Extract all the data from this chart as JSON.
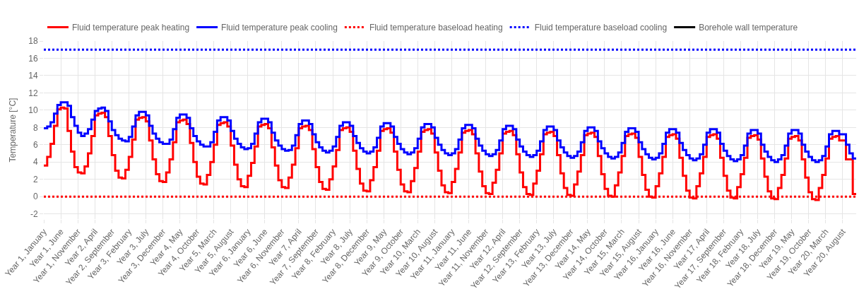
{
  "chart_data": {
    "type": "step",
    "ylabel": "Temperature [°C]",
    "categories": [
      "Year 1, January",
      null,
      null,
      null,
      null,
      "Year 1, June",
      null,
      null,
      null,
      null,
      "Year 1, November",
      null,
      null,
      null,
      null,
      "Year 2, April",
      null,
      null,
      null,
      null,
      "Year 2, September",
      null,
      null,
      null,
      null,
      "Year 3, February",
      null,
      null,
      null,
      null,
      "Year 3, July",
      null,
      null,
      null,
      null,
      "Year 3, December",
      null,
      null,
      null,
      null,
      "Year 4, May",
      null,
      null,
      null,
      null,
      "Year 4, October",
      null,
      null,
      null,
      null,
      "Year 5, March",
      null,
      null,
      null,
      null,
      "Year 5, August",
      null,
      null,
      null,
      null,
      "Year 6, January",
      null,
      null,
      null,
      null,
      "Year 6, June",
      null,
      null,
      null,
      null,
      "Year 6, November",
      null,
      null,
      null,
      null,
      "Year 7, April",
      null,
      null,
      null,
      null,
      "Year 7, September",
      null,
      null,
      null,
      null,
      "Year 8, February",
      null,
      null,
      null,
      null,
      "Year 8, July",
      null,
      null,
      null,
      null,
      "Year 8, December",
      null,
      null,
      null,
      null,
      "Year 9, May",
      null,
      null,
      null,
      null,
      "Year 9, October",
      null,
      null,
      null,
      null,
      "Year 10, March",
      null,
      null,
      null,
      null,
      "Year 10, August",
      null,
      null,
      null,
      null,
      "Year 11, January",
      null,
      null,
      null,
      null,
      "Year 11, June",
      null,
      null,
      null,
      null,
      "Year 11, November",
      null,
      null,
      null,
      null,
      "Year 12, April",
      null,
      null,
      null,
      null,
      "Year 12, September",
      null,
      null,
      null,
      null,
      "Year 13, February",
      null,
      null,
      null,
      null,
      "Year 13, July",
      null,
      null,
      null,
      null,
      "Year 13, December",
      null,
      null,
      null,
      null,
      "Year 14, May",
      null,
      null,
      null,
      null,
      "Year 14, October",
      null,
      null,
      null,
      null,
      "Year 15, March",
      null,
      null,
      null,
      null,
      "Year 15, August",
      null,
      null,
      null,
      null,
      "Year 16, January",
      null,
      null,
      null,
      null,
      "Year 16, June",
      null,
      null,
      null,
      null,
      "Year 16, November",
      null,
      null,
      null,
      null,
      "Year 17, April",
      null,
      null,
      null,
      null,
      "Year 17, September",
      null,
      null,
      null,
      null,
      "Year 18, February",
      null,
      null,
      null,
      null,
      "Year 18, July",
      null,
      null,
      null,
      null,
      "Year 18, December",
      null,
      null,
      null,
      null,
      "Year 19, May",
      null,
      null,
      null,
      null,
      "Year 19, October",
      null,
      null,
      null,
      null,
      "Year 20, March",
      null,
      null,
      null,
      null,
      "Year 20, August",
      null,
      null,
      null,
      null
    ],
    "series": [
      {
        "name": "Fluid temperature peak heating",
        "color": "#ff0000",
        "line_style": "solid",
        "values": [
          3.6,
          4.6,
          6.1,
          8.2,
          10.1,
          10.3,
          10.2,
          7.6,
          5.2,
          3.4,
          2.8,
          2.7,
          3.5,
          5.0,
          7.0,
          9.4,
          9.6,
          9.7,
          9.2,
          7.0,
          4.8,
          3.0,
          2.2,
          2.1,
          3.1,
          4.6,
          6.6,
          8.9,
          9.1,
          9.2,
          8.7,
          6.5,
          4.3,
          2.6,
          1.8,
          1.7,
          2.8,
          4.3,
          6.3,
          8.6,
          8.8,
          8.9,
          8.4,
          6.2,
          4.0,
          2.3,
          1.5,
          1.4,
          2.5,
          4.0,
          6.0,
          8.3,
          8.5,
          8.6,
          8.1,
          5.9,
          3.7,
          2.0,
          1.2,
          1.1,
          2.4,
          3.9,
          5.8,
          8.1,
          8.3,
          8.4,
          7.9,
          5.7,
          3.6,
          1.9,
          1.1,
          1.0,
          2.2,
          3.7,
          5.6,
          7.9,
          8.1,
          8.2,
          7.7,
          5.5,
          3.4,
          1.7,
          0.9,
          0.8,
          2.0,
          3.5,
          5.4,
          7.7,
          7.9,
          8.0,
          7.5,
          5.3,
          3.2,
          1.5,
          0.7,
          0.6,
          1.9,
          3.4,
          5.3,
          7.6,
          7.8,
          7.9,
          7.4,
          5.2,
          3.1,
          1.4,
          0.6,
          0.5,
          1.8,
          3.3,
          5.2,
          7.5,
          7.7,
          7.8,
          7.3,
          5.1,
          3.0,
          1.3,
          0.5,
          0.4,
          1.7,
          3.2,
          5.1,
          7.4,
          7.6,
          7.7,
          7.2,
          5.0,
          2.9,
          1.2,
          0.4,
          0.3,
          1.6,
          3.1,
          5.0,
          7.3,
          7.5,
          7.6,
          7.1,
          4.9,
          2.8,
          1.1,
          0.3,
          0.2,
          1.5,
          3.0,
          4.9,
          7.2,
          7.4,
          7.5,
          7.0,
          4.8,
          2.7,
          1.0,
          0.2,
          0.1,
          1.4,
          2.9,
          4.8,
          7.1,
          7.3,
          7.4,
          6.9,
          4.7,
          2.6,
          0.9,
          0.1,
          0.0,
          1.3,
          2.8,
          4.7,
          7.0,
          7.2,
          7.3,
          6.8,
          4.6,
          2.5,
          0.8,
          0.0,
          -0.1,
          1.2,
          2.7,
          4.6,
          6.9,
          7.1,
          7.2,
          6.7,
          4.5,
          2.4,
          0.7,
          -0.1,
          -0.2,
          1.2,
          2.7,
          4.6,
          6.9,
          7.1,
          7.2,
          6.7,
          4.5,
          2.4,
          0.7,
          -0.1,
          -0.2,
          1.1,
          2.6,
          4.5,
          6.8,
          7.0,
          7.1,
          6.6,
          4.4,
          2.3,
          0.6,
          -0.2,
          -0.3,
          1.0,
          2.5,
          4.4,
          6.7,
          6.9,
          7.0,
          6.5,
          4.3,
          2.2,
          0.5,
          -0.3,
          -0.4,
          1.0,
          2.5,
          4.4,
          6.7,
          6.9,
          7.0,
          6.5,
          6.5,
          4.3,
          4.3,
          0.3,
          0.3
        ]
      },
      {
        "name": "Fluid temperature peak cooling",
        "color": "#0000ff",
        "line_style": "solid",
        "values": [
          7.9,
          8.1,
          8.6,
          9.6,
          10.6,
          10.9,
          10.9,
          10.5,
          9.2,
          8.2,
          7.4,
          7.0,
          7.3,
          7.8,
          8.9,
          9.9,
          10.2,
          10.3,
          9.9,
          8.7,
          7.7,
          7.1,
          6.7,
          6.5,
          6.4,
          6.9,
          8.1,
          9.4,
          9.8,
          9.8,
          9.4,
          8.2,
          7.3,
          6.7,
          6.3,
          6.1,
          6.1,
          6.6,
          7.8,
          9.1,
          9.5,
          9.5,
          9.1,
          7.9,
          7.0,
          6.4,
          6.0,
          5.8,
          5.8,
          6.3,
          7.5,
          8.8,
          9.2,
          9.2,
          8.8,
          7.6,
          6.7,
          6.1,
          5.7,
          5.5,
          5.6,
          6.1,
          7.3,
          8.6,
          9.0,
          9.0,
          8.6,
          7.4,
          6.5,
          5.9,
          5.5,
          5.3,
          5.4,
          5.9,
          7.1,
          8.4,
          8.8,
          8.8,
          8.4,
          7.2,
          6.3,
          5.7,
          5.3,
          5.1,
          5.3,
          5.8,
          6.9,
          8.2,
          8.6,
          8.6,
          8.2,
          7.0,
          6.2,
          5.6,
          5.2,
          5.0,
          5.2,
          5.7,
          6.8,
          8.1,
          8.5,
          8.5,
          8.1,
          6.9,
          6.1,
          5.5,
          5.1,
          4.9,
          5.1,
          5.6,
          6.7,
          8.0,
          8.4,
          8.4,
          8.0,
          6.8,
          6.0,
          5.4,
          5.0,
          4.8,
          5.0,
          5.5,
          6.6,
          7.9,
          8.3,
          8.3,
          7.9,
          6.7,
          5.9,
          5.3,
          4.9,
          4.7,
          4.9,
          5.4,
          6.5,
          7.8,
          8.2,
          8.2,
          7.8,
          6.6,
          5.8,
          5.2,
          4.8,
          4.6,
          4.8,
          5.3,
          6.4,
          7.7,
          8.1,
          8.1,
          7.7,
          6.5,
          5.7,
          5.1,
          4.7,
          4.5,
          4.7,
          5.2,
          6.3,
          7.6,
          8.0,
          8.0,
          7.6,
          6.4,
          5.6,
          5.0,
          4.6,
          4.4,
          4.6,
          5.1,
          6.2,
          7.5,
          7.9,
          7.9,
          7.5,
          6.3,
          5.5,
          4.9,
          4.5,
          4.3,
          4.5,
          5.0,
          6.1,
          7.4,
          7.8,
          7.8,
          7.4,
          6.2,
          5.4,
          4.8,
          4.4,
          4.2,
          4.4,
          4.9,
          6.0,
          7.4,
          7.8,
          7.8,
          7.4,
          6.1,
          5.3,
          4.7,
          4.3,
          4.1,
          4.3,
          4.8,
          5.9,
          7.3,
          7.7,
          7.7,
          7.3,
          6.0,
          5.2,
          4.6,
          4.2,
          4.0,
          4.3,
          4.8,
          5.9,
          7.3,
          7.7,
          7.7,
          7.3,
          6.0,
          5.2,
          4.6,
          4.2,
          4.0,
          4.2,
          4.7,
          5.8,
          7.2,
          7.6,
          7.6,
          7.2,
          7.2,
          6.0,
          5.0,
          4.4,
          4.4
        ]
      },
      {
        "name": "Fluid temperature baseload heating",
        "color": "#ff0000",
        "line_style": "dotted",
        "values": [
          null,
          null,
          null,
          null,
          null,
          null,
          null,
          null,
          null,
          null,
          null,
          null,
          null,
          null,
          null,
          null,
          null,
          null,
          null,
          null,
          null,
          null,
          null,
          null,
          null,
          null,
          null,
          null,
          null,
          null,
          null,
          null,
          null,
          null,
          null,
          null,
          null,
          null,
          null,
          null,
          null,
          null,
          null,
          null,
          null,
          null,
          null,
          null,
          null,
          null,
          null,
          null,
          null,
          null,
          null,
          null,
          null,
          null,
          null,
          null,
          null,
          null,
          null,
          null,
          null,
          null,
          null,
          null,
          null,
          null,
          null,
          null,
          null,
          null,
          null,
          null,
          null,
          null,
          null,
          null,
          null,
          null,
          null,
          null,
          null,
          null,
          null,
          null,
          null,
          null,
          null,
          null,
          null,
          null,
          null,
          null,
          null,
          null,
          null,
          null,
          null,
          null,
          null,
          null,
          null,
          null,
          null,
          null,
          null,
          null,
          null,
          null,
          null,
          null,
          null,
          null,
          null,
          null,
          null,
          null,
          null,
          null,
          null,
          null,
          null,
          null,
          null,
          null,
          null,
          null,
          null,
          null,
          null,
          null,
          null,
          null,
          null,
          null,
          null,
          null,
          null,
          null,
          null,
          null,
          null,
          null,
          null,
          null,
          null,
          null,
          null,
          null,
          null,
          null,
          null,
          null,
          null,
          null,
          null,
          null,
          null,
          null,
          null,
          null,
          null,
          null,
          null,
          null,
          null,
          null,
          null,
          null,
          null,
          null,
          null,
          null,
          null,
          null,
          null,
          null,
          null,
          null,
          null,
          null,
          null,
          null,
          null,
          null,
          null,
          null,
          null,
          null,
          null,
          null,
          null,
          null,
          null,
          null,
          null,
          null,
          null,
          null,
          null,
          null,
          null,
          null,
          null,
          null,
          null,
          null,
          null,
          null,
          null,
          null,
          null,
          null,
          null,
          null,
          null,
          null,
          null,
          null,
          null,
          null,
          null,
          null,
          null,
          null,
          null,
          null,
          null,
          null,
          null,
          null,
          null,
          null,
          null,
          null,
          null,
          null
        ]
      },
      {
        "name": "Fluid temperature baseload cooling",
        "color": "#0000ff",
        "line_style": "dotted",
        "values": [
          null,
          null,
          null,
          null,
          null,
          null,
          null,
          null,
          null,
          null,
          null,
          null,
          null,
          null,
          null,
          null,
          null,
          null,
          null,
          null,
          null,
          null,
          null,
          null,
          null,
          null,
          null,
          null,
          null,
          null,
          null,
          null,
          null,
          null,
          null,
          null,
          null,
          null,
          null,
          null,
          null,
          null,
          null,
          null,
          null,
          null,
          null,
          null,
          null,
          null,
          null,
          null,
          null,
          null,
          null,
          null,
          null,
          null,
          null,
          null,
          null,
          null,
          null,
          null,
          null,
          null,
          null,
          null,
          null,
          null,
          null,
          null,
          null,
          null,
          null,
          null,
          null,
          null,
          null,
          null,
          null,
          null,
          null,
          null,
          null,
          null,
          null,
          null,
          null,
          null,
          null,
          null,
          null,
          null,
          null,
          null,
          null,
          null,
          null,
          null,
          null,
          null,
          null,
          null,
          null,
          null,
          null,
          null,
          null,
          null,
          null,
          null,
          null,
          null,
          null,
          null,
          null,
          null,
          null,
          null,
          null,
          null,
          null,
          null,
          null,
          null,
          null,
          null,
          null,
          null,
          null,
          null,
          null,
          null,
          null,
          null,
          null,
          null,
          null,
          null,
          null,
          null,
          null,
          null,
          null,
          null,
          null,
          null,
          null,
          null,
          null,
          null,
          null,
          null,
          null,
          null,
          null,
          null,
          null,
          null,
          null,
          null,
          null,
          null,
          null,
          null,
          null,
          null,
          null,
          null,
          null,
          null,
          null,
          null,
          null,
          null,
          null,
          null,
          null,
          null,
          null,
          null,
          null,
          null,
          null,
          null,
          null,
          null,
          null,
          null,
          null,
          null,
          null,
          null,
          null,
          null,
          null,
          null,
          null,
          null,
          null,
          null,
          null,
          null,
          null,
          null,
          null,
          null,
          null,
          null,
          null,
          null,
          null,
          null,
          null,
          null,
          null,
          null,
          null,
          null,
          null,
          null,
          null,
          null,
          null,
          null,
          null,
          null,
          null,
          null,
          null,
          null,
          null,
          null,
          null,
          null,
          null,
          null,
          null,
          null
        ]
      },
      {
        "name": "Borehole wall temperature",
        "color": "#000000",
        "line_style": "solid",
        "values": [
          null,
          null,
          null,
          null,
          null,
          null,
          null,
          null,
          null,
          null,
          null,
          null,
          null,
          null,
          null,
          null,
          null,
          null,
          null,
          null,
          null,
          null,
          null,
          null,
          null,
          null,
          null,
          null,
          null,
          null,
          null,
          null,
          null,
          null,
          null,
          null,
          null,
          null,
          null,
          null,
          null,
          null,
          null,
          null,
          null,
          null,
          null,
          null,
          null,
          null,
          null,
          null,
          null,
          null,
          null,
          null,
          null,
          null,
          null,
          null,
          null,
          null,
          null,
          null,
          null,
          null,
          null,
          null,
          null,
          null,
          null,
          null,
          null,
          null,
          null,
          null,
          null,
          null,
          null,
          null,
          null,
          null,
          null,
          null,
          null,
          null,
          null,
          null,
          null,
          null,
          null,
          null,
          null,
          null,
          null,
          null,
          null,
          null,
          null,
          null,
          null,
          null,
          null,
          null,
          null,
          null,
          null,
          null,
          null,
          null,
          null,
          null,
          null,
          null,
          null,
          null,
          null,
          null,
          null,
          null,
          null,
          null,
          null,
          null,
          null,
          null,
          null,
          null,
          null,
          null,
          null,
          null,
          null,
          null,
          null,
          null,
          null,
          null,
          null,
          null,
          null,
          null,
          null,
          null,
          null,
          null,
          null,
          null,
          null,
          null,
          null,
          null,
          null,
          null,
          null,
          null,
          null,
          null,
          null,
          null,
          null,
          null,
          null,
          null,
          null,
          null,
          null,
          null,
          null,
          null,
          null,
          null,
          null,
          null,
          null,
          null,
          null,
          null,
          null,
          null,
          null,
          null,
          null,
          null,
          null,
          null,
          null,
          null,
          null,
          null,
          null,
          null,
          null,
          null,
          null,
          null,
          null,
          null,
          null,
          null,
          null,
          null,
          null,
          null,
          null,
          null,
          null,
          null,
          null,
          null,
          null,
          null,
          null,
          null,
          null,
          null,
          null,
          null,
          null,
          null,
          null,
          null,
          null,
          null,
          null,
          null,
          null,
          null,
          null,
          null,
          null,
          null,
          null,
          null,
          null,
          null,
          null,
          null,
          null,
          null
        ]
      }
    ],
    "ref_lines": [
      {
        "axis": "y",
        "value": 17,
        "color": "#0000ff",
        "line_style": "dotted"
      },
      {
        "axis": "y",
        "value": 0,
        "color": "#ff0000",
        "line_style": "dotted"
      }
    ],
    "ylim": [
      -2.6,
      18
    ],
    "yticks": [
      -2,
      0,
      2,
      4,
      6,
      8,
      10,
      12,
      14,
      16,
      18
    ],
    "grid": true,
    "legend": "top left",
    "marker": "none"
  }
}
